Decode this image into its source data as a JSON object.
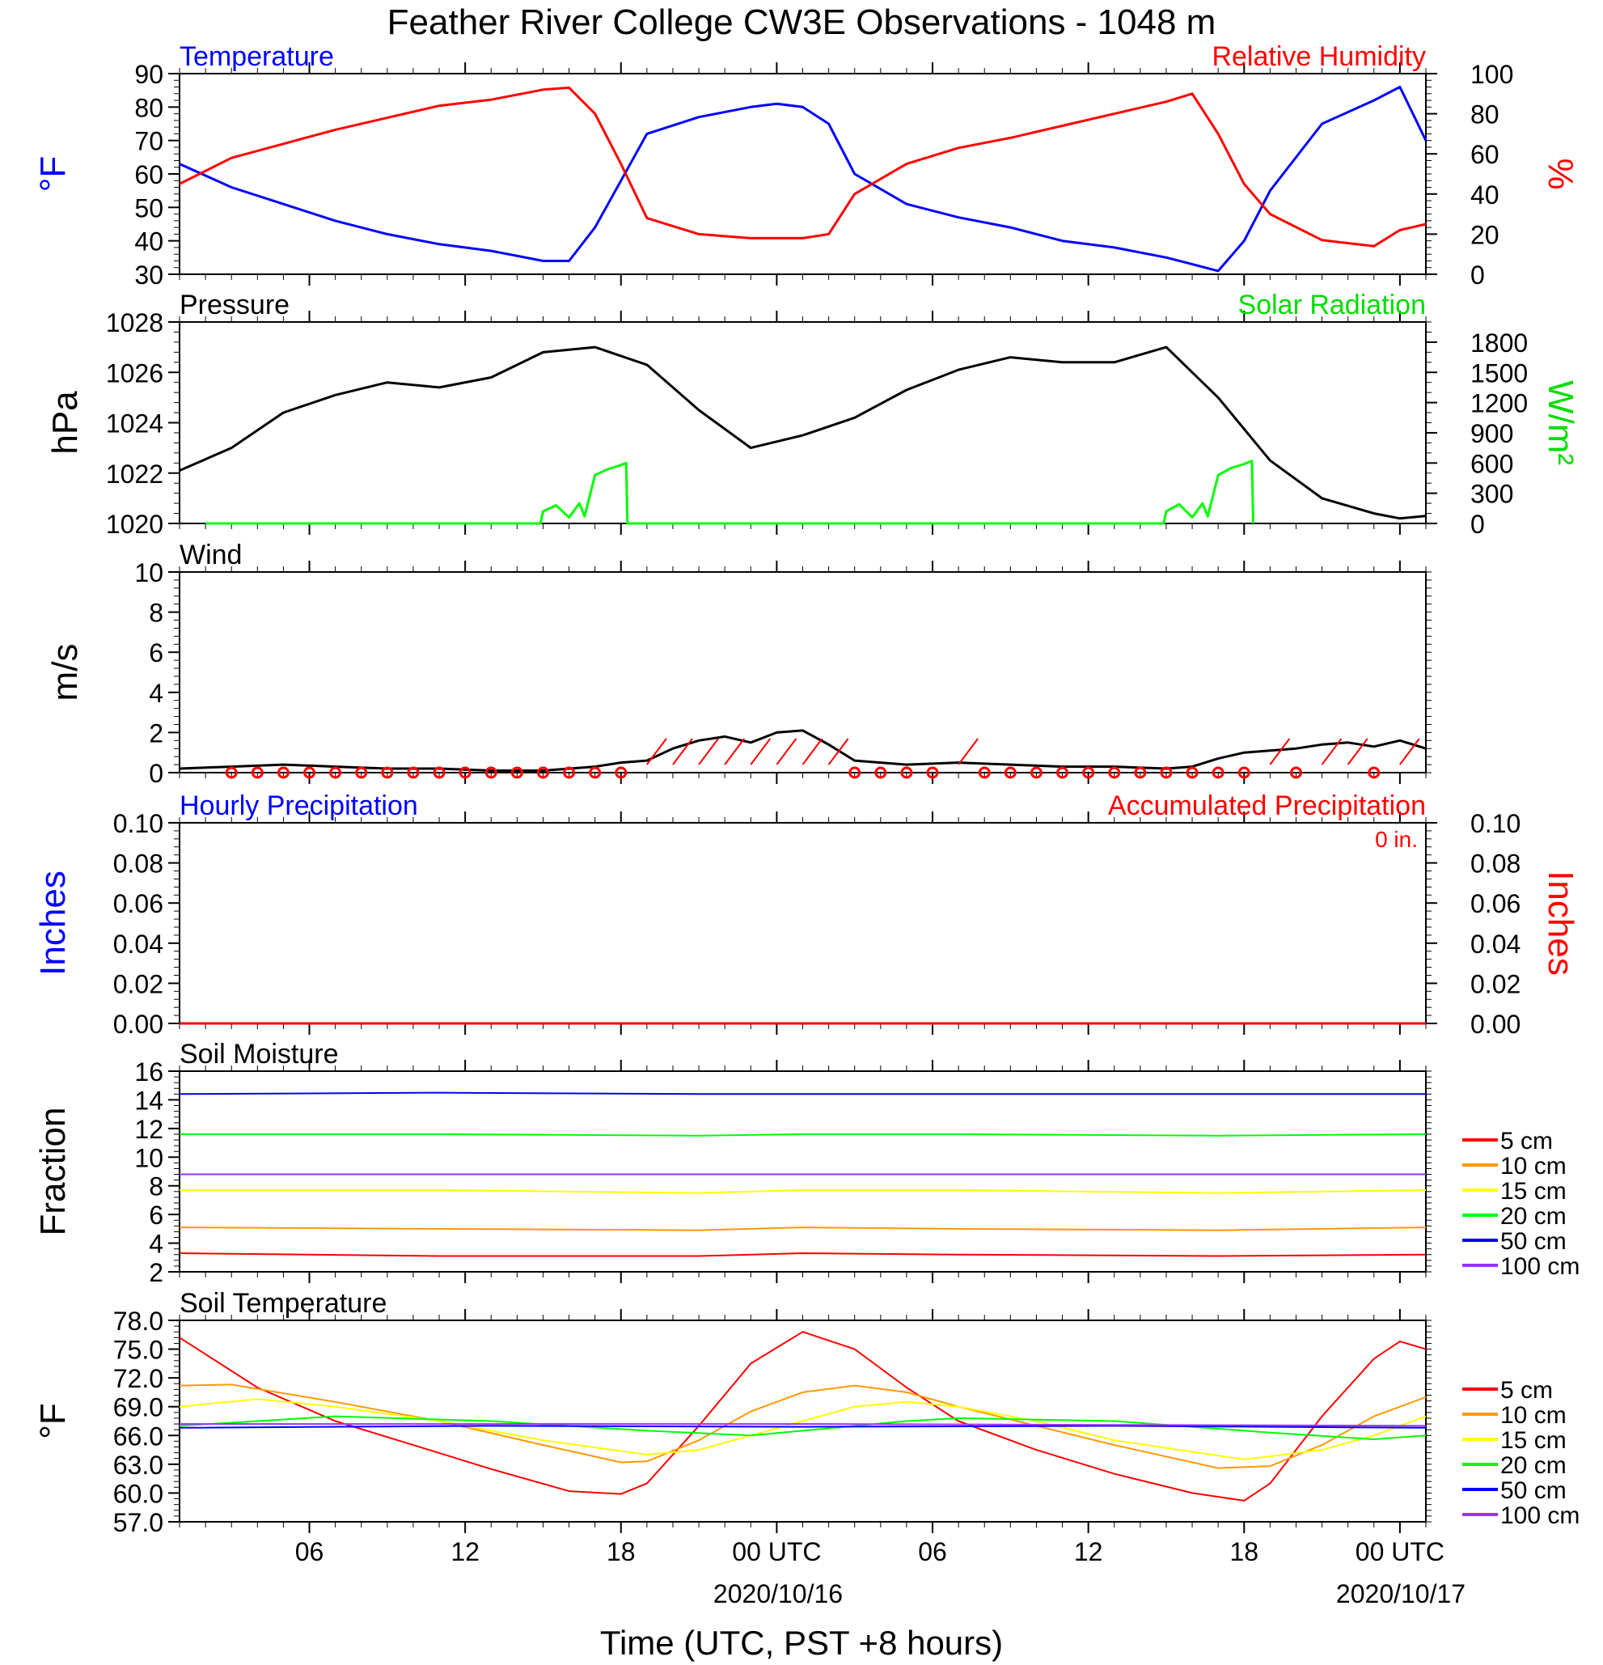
{
  "figure": {
    "title": "Feather River College CW3E Observations - 1048 m",
    "xlabel": "Time (UTC, PST +8 hours)",
    "x_ticks": [
      "06",
      "12",
      "18",
      "00 UTC",
      "06",
      "12",
      "18",
      "00 UTC"
    ],
    "date_labels": [
      "2020/10/16",
      "2020/10/17"
    ]
  },
  "chart_data": [
    {
      "type": "line",
      "panel": "temperature-humidity",
      "title_left": "Temperature",
      "title_right": "Relative Humidity",
      "ylabel_left": "°F",
      "ylabel_right": "%",
      "ylim_left": [
        30,
        90
      ],
      "ylim_right": [
        0,
        100
      ],
      "yticks_left": [
        "30",
        "40",
        "50",
        "60",
        "70",
        "80",
        "90"
      ],
      "yticks_right": [
        "0",
        "20",
        "40",
        "60",
        "80",
        "100"
      ],
      "x_unit": "hours since 2020-10-15 01 UTC",
      "series": [
        {
          "name": "Temperature",
          "axis": "left",
          "color": "#0000ff",
          "x": [
            0,
            2,
            4,
            6,
            8,
            10,
            12,
            14,
            15,
            16,
            17,
            18,
            20,
            22,
            23,
            24,
            25,
            26,
            28,
            30,
            32,
            34,
            36,
            38,
            39,
            40,
            41,
            42,
            44,
            46,
            47,
            48
          ],
          "y": [
            63,
            56,
            51,
            46,
            42,
            39,
            37,
            34,
            34,
            44,
            58,
            72,
            77,
            80,
            81,
            80,
            75,
            60,
            51,
            47,
            44,
            40,
            38,
            35,
            33,
            31,
            40,
            55,
            75,
            82,
            86,
            70
          ]
        },
        {
          "name": "Relative Humidity",
          "axis": "right",
          "color": "#ff0000",
          "x": [
            0,
            2,
            4,
            6,
            8,
            10,
            12,
            14,
            15,
            16,
            17,
            18,
            20,
            22,
            24,
            25,
            26,
            28,
            30,
            32,
            34,
            36,
            38,
            39,
            40,
            41,
            42,
            44,
            46,
            47,
            48
          ],
          "y": [
            45,
            58,
            65,
            72,
            78,
            84,
            87,
            92,
            93,
            80,
            55,
            28,
            20,
            18,
            18,
            20,
            40,
            55,
            63,
            68,
            74,
            80,
            86,
            90,
            70,
            45,
            30,
            17,
            14,
            22,
            25
          ]
        }
      ]
    },
    {
      "type": "line",
      "panel": "pressure-solar",
      "title_left": "Pressure",
      "title_right": "Solar Radiation",
      "ylabel_left": "hPa",
      "ylabel_right": "W/m²",
      "ylim_left": [
        1020,
        1028
      ],
      "ylim_right": [
        0,
        2000
      ],
      "yticks_left": [
        "1020",
        "1022",
        "1024",
        "1026",
        "1028"
      ],
      "yticks_right": [
        "0",
        "300",
        "600",
        "900",
        "1200",
        "1500",
        "1800"
      ],
      "series": [
        {
          "name": "Pressure",
          "axis": "left",
          "color": "#000000",
          "x": [
            0,
            2,
            4,
            6,
            8,
            10,
            12,
            14,
            16,
            18,
            20,
            22,
            24,
            26,
            28,
            30,
            32,
            34,
            36,
            38,
            40,
            42,
            44,
            46,
            47,
            48
          ],
          "y": [
            1022.1,
            1023,
            1024.4,
            1025.1,
            1025.6,
            1025.4,
            1025.8,
            1026.8,
            1027.0,
            1026.3,
            1024.5,
            1023.0,
            1023.5,
            1024.2,
            1025.3,
            1026.1,
            1026.6,
            1026.4,
            1026.4,
            1027.0,
            1025.0,
            1022.5,
            1021.0,
            1020.4,
            1020.2,
            1020.3
          ]
        },
        {
          "name": "Solar Radiation",
          "axis": "right",
          "color": "#00ff00",
          "x": [
            1,
            13.9,
            14,
            14.5,
            15,
            15.4,
            15.6,
            16,
            16.5,
            17,
            17.2,
            17.25,
            25,
            37.9,
            38,
            38.5,
            39,
            39.4,
            39.6,
            40,
            40.5,
            41,
            41.3,
            41.35
          ],
          "y": [
            0,
            0,
            120,
            180,
            60,
            200,
            70,
            480,
            540,
            580,
            600,
            0,
            0,
            0,
            120,
            190,
            60,
            200,
            70,
            480,
            550,
            590,
            620,
            0
          ]
        }
      ]
    },
    {
      "type": "line",
      "panel": "wind",
      "title_left": "Wind",
      "ylabel_left": "m/s",
      "ylim_left": [
        0,
        10
      ],
      "yticks_left": [
        "0",
        "2",
        "4",
        "6",
        "8",
        "10"
      ],
      "series": [
        {
          "name": "Wind",
          "axis": "left",
          "color": "#000000",
          "x": [
            0,
            2,
            4,
            6,
            8,
            10,
            12,
            14,
            16,
            17,
            18,
            19,
            20,
            21,
            22,
            23,
            24,
            25,
            26,
            28,
            30,
            32,
            34,
            36,
            38,
            39,
            40,
            41,
            42,
            43,
            44,
            45,
            46,
            47,
            48
          ],
          "y": [
            0.2,
            0.3,
            0.4,
            0.3,
            0.2,
            0.2,
            0.1,
            0.1,
            0.3,
            0.5,
            0.6,
            1.2,
            1.6,
            1.8,
            1.5,
            2.0,
            2.1,
            1.4,
            0.6,
            0.4,
            0.5,
            0.4,
            0.3,
            0.3,
            0.2,
            0.3,
            0.7,
            1.0,
            1.1,
            1.2,
            1.4,
            1.5,
            1.3,
            1.6,
            1.2
          ]
        }
      ],
      "wind_barb_times": [
        2,
        3,
        4,
        5,
        6,
        7,
        8,
        9,
        10,
        11,
        12,
        13,
        14,
        15,
        16,
        17,
        18,
        19,
        20,
        21,
        22,
        23,
        24,
        25,
        26,
        27,
        28,
        29,
        30,
        31,
        32,
        33,
        34,
        35,
        36,
        37,
        38,
        39,
        40,
        41,
        42,
        43,
        44,
        45,
        46,
        47
      ],
      "wind_barb_speed": [
        0.1,
        0.1,
        0.1,
        0.1,
        0.1,
        0.2,
        0.1,
        0.1,
        0.1,
        0.1,
        0.1,
        0.1,
        0.1,
        0.1,
        0.3,
        0.4,
        1.0,
        1.2,
        1.5,
        1.4,
        1.7,
        1.8,
        1.6,
        1.3,
        0.1,
        0.1,
        0.1,
        0.1,
        1.0,
        0.1,
        0.3,
        0.1,
        0.1,
        0.1,
        0.1,
        0.1,
        0.1,
        0.1,
        0.1,
        0.3,
        0.6,
        0.1,
        1.1,
        1.2,
        0.1,
        1.3
      ]
    },
    {
      "type": "line",
      "panel": "precipitation",
      "title_left": "Hourly Precipitation",
      "title_right": "Accumulated Precipitation",
      "annotation": "0 in.",
      "ylabel_left": "Inches",
      "ylabel_right": "Inches",
      "ylim_left": [
        0,
        0.1
      ],
      "ylim_right": [
        0,
        0.1
      ],
      "yticks_left": [
        "0.00",
        "0.02",
        "0.04",
        "0.06",
        "0.08",
        "0.10"
      ],
      "yticks_right": [
        "0.00",
        "0.02",
        "0.04",
        "0.06",
        "0.08",
        "0.10"
      ],
      "series": [
        {
          "name": "Hourly Precipitation",
          "axis": "left",
          "color": "#0000ff",
          "x": [
            0,
            48
          ],
          "y": [
            0,
            0
          ]
        },
        {
          "name": "Accumulated Precipitation",
          "axis": "right",
          "color": "#ff0000",
          "x": [
            0,
            48
          ],
          "y": [
            0,
            0
          ]
        }
      ]
    },
    {
      "type": "line",
      "panel": "soil-moisture",
      "title_left": "Soil Moisture",
      "ylabel_left": "Fraction",
      "ylim_left": [
        2,
        16
      ],
      "yticks_left": [
        "2",
        "4",
        "6",
        "8",
        "10",
        "12",
        "14",
        "16"
      ],
      "legend": "right",
      "series": [
        {
          "name": "5 cm",
          "color": "#ff0000",
          "x": [
            0,
            10,
            20,
            24,
            30,
            40,
            48
          ],
          "y": [
            3.3,
            3.1,
            3.1,
            3.3,
            3.2,
            3.1,
            3.2
          ]
        },
        {
          "name": "10 cm",
          "color": "#ff9900",
          "x": [
            0,
            10,
            20,
            24,
            30,
            40,
            48
          ],
          "y": [
            5.1,
            5.0,
            4.9,
            5.1,
            5.0,
            4.9,
            5.1
          ]
        },
        {
          "name": "15 cm",
          "color": "#ffff00",
          "x": [
            0,
            10,
            20,
            24,
            30,
            40,
            48
          ],
          "y": [
            7.7,
            7.7,
            7.5,
            7.7,
            7.7,
            7.5,
            7.7
          ]
        },
        {
          "name": "20 cm",
          "color": "#00ff00",
          "x": [
            0,
            10,
            20,
            24,
            30,
            40,
            48
          ],
          "y": [
            11.6,
            11.6,
            11.5,
            11.6,
            11.6,
            11.5,
            11.6
          ]
        },
        {
          "name": "50 cm",
          "color": "#0000ff",
          "x": [
            0,
            10,
            20,
            24,
            30,
            40,
            48
          ],
          "y": [
            14.4,
            14.5,
            14.4,
            14.4,
            14.4,
            14.4,
            14.4
          ]
        },
        {
          "name": "100 cm",
          "color": "#9933ff",
          "x": [
            0,
            48
          ],
          "y": [
            8.8,
            8.8
          ]
        }
      ]
    },
    {
      "type": "line",
      "panel": "soil-temperature",
      "title_left": "Soil Temperature",
      "ylabel_left": "°F",
      "ylim_left": [
        57,
        78
      ],
      "yticks_left": [
        "57.0",
        "60.0",
        "63.0",
        "66.0",
        "69.0",
        "72.0",
        "75.0",
        "78.0"
      ],
      "legend": "right",
      "series": [
        {
          "name": "5 cm",
          "color": "#ff0000",
          "x": [
            0,
            3,
            6,
            9,
            12,
            15,
            17,
            18,
            20,
            22,
            24,
            26,
            28,
            30,
            33,
            36,
            39,
            41,
            42,
            44,
            46,
            47,
            48
          ],
          "y": [
            76.2,
            71.0,
            67.5,
            65.0,
            62.5,
            60.2,
            59.9,
            61.0,
            67.0,
            73.5,
            76.8,
            75.0,
            71.0,
            67.5,
            64.5,
            62.0,
            60.0,
            59.2,
            61.0,
            68.0,
            74.0,
            75.8,
            75.0
          ]
        },
        {
          "name": "10 cm",
          "color": "#ff9900",
          "x": [
            0,
            2,
            6,
            10,
            14,
            17,
            18,
            20,
            22,
            24,
            26,
            28,
            30,
            33,
            36,
            40,
            42,
            44,
            46,
            48
          ],
          "y": [
            71.2,
            71.3,
            69.5,
            67.5,
            65.0,
            63.2,
            63.3,
            65.5,
            68.5,
            70.5,
            71.2,
            70.5,
            69.0,
            67.0,
            65.0,
            62.6,
            62.8,
            65.0,
            68.0,
            70.0
          ]
        },
        {
          "name": "15 cm",
          "color": "#ffff00",
          "x": [
            0,
            3,
            6,
            10,
            14,
            18,
            20,
            22,
            24,
            26,
            28,
            30,
            33,
            36,
            41,
            44,
            46,
            48
          ],
          "y": [
            69.0,
            69.8,
            69.0,
            67.5,
            65.5,
            64.0,
            64.5,
            66.0,
            67.5,
            69.0,
            69.5,
            69.0,
            67.5,
            65.5,
            63.5,
            64.5,
            66.0,
            68.0
          ]
        },
        {
          "name": "20 cm",
          "color": "#00ff00",
          "x": [
            0,
            6,
            12,
            18,
            22,
            24,
            28,
            30,
            36,
            42,
            46,
            48
          ],
          "y": [
            67.0,
            68.0,
            67.5,
            66.5,
            66.0,
            66.5,
            67.5,
            67.8,
            67.5,
            66.3,
            65.6,
            66.0
          ]
        },
        {
          "name": "50 cm",
          "color": "#0000ff",
          "x": [
            0,
            12,
            24,
            36,
            48
          ],
          "y": [
            66.8,
            67.0,
            66.9,
            67.0,
            66.8
          ]
        },
        {
          "name": "100 cm",
          "color": "#9933ff",
          "x": [
            0,
            12,
            24,
            36,
            48
          ],
          "y": [
            67.2,
            67.2,
            67.2,
            67.1,
            67.0
          ]
        }
      ]
    }
  ]
}
